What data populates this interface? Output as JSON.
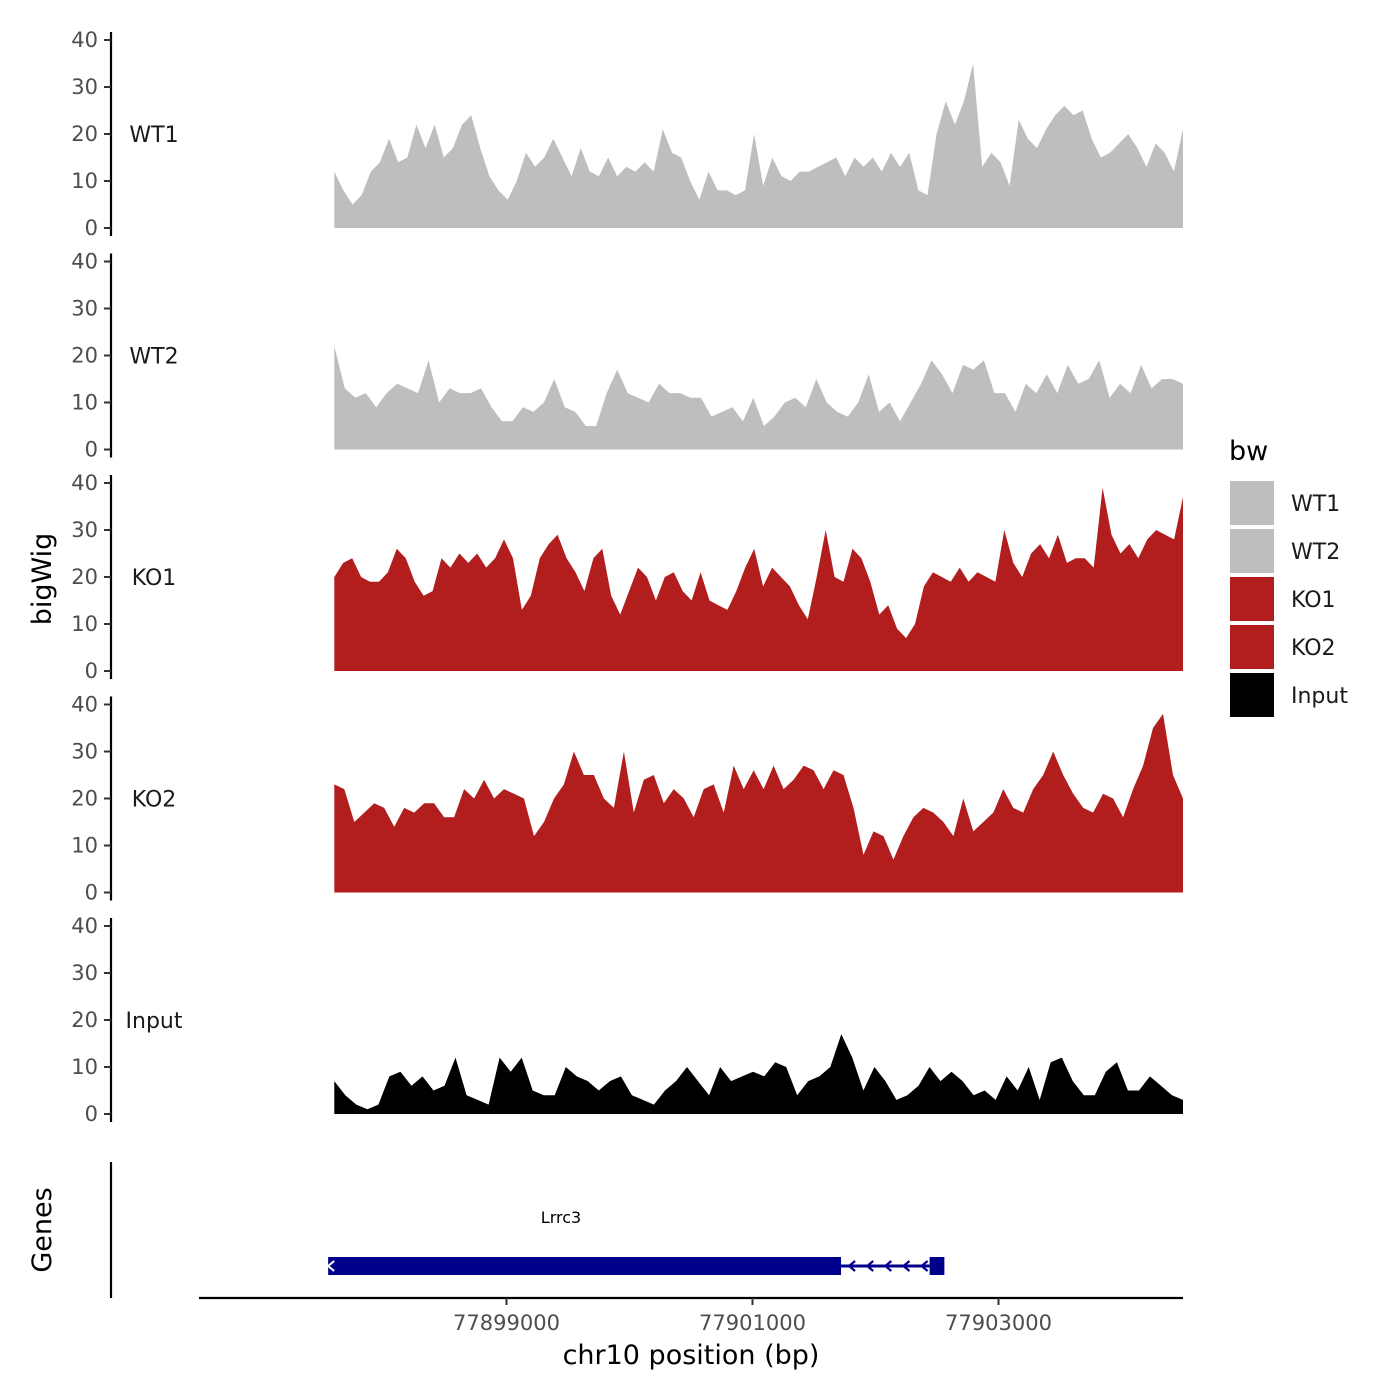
{
  "chart_data": {
    "type": "area",
    "ylabel": "bigWig",
    "xlabel": "chr10 position (bp)",
    "ylim": [
      0,
      40
    ],
    "yticks": [
      0,
      10,
      20,
      30,
      40
    ],
    "xlim": [
      77896500,
      77904500
    ],
    "xticks": [
      77899000,
      77901000,
      77903000
    ],
    "xtick_labels": [
      "77899000",
      "77901000",
      "77903000"
    ],
    "grid": false,
    "legend": {
      "title": "bw",
      "position": "right",
      "entries": [
        {
          "name": "WT1",
          "color": "#BEBEBE"
        },
        {
          "name": "WT2",
          "color": "#BEBEBE"
        },
        {
          "name": "KO1",
          "color": "#B21E1E"
        },
        {
          "name": "KO2",
          "color": "#B21E1E"
        },
        {
          "name": "Input",
          "color": "#000000"
        }
      ]
    },
    "x_start": 77897600,
    "x_end": 77904500,
    "series": [
      {
        "name": "WT1",
        "color": "#BEBEBE",
        "values": [
          12,
          8,
          5,
          7,
          12,
          14,
          19,
          14,
          15,
          22,
          17,
          22,
          15,
          17,
          22,
          24,
          17,
          11,
          8,
          6,
          10,
          16,
          13,
          15,
          19,
          15,
          11,
          17,
          12,
          11,
          15,
          11,
          13,
          12,
          14,
          12,
          21,
          16,
          15,
          10,
          6,
          12,
          8,
          8,
          7,
          8,
          20,
          9,
          15,
          11,
          10,
          12,
          12,
          13,
          14,
          15,
          11,
          15,
          13,
          15,
          12,
          16,
          13,
          16,
          8,
          7,
          20,
          27,
          22,
          27,
          35,
          13,
          16,
          14,
          9,
          23,
          19,
          17,
          21,
          24,
          26,
          24,
          25,
          19,
          15,
          16,
          18,
          20,
          17,
          13,
          18,
          16,
          12,
          21
        ]
      },
      {
        "name": "WT2",
        "color": "#BEBEBE",
        "values": [
          22,
          13,
          11,
          12,
          9,
          12,
          14,
          13,
          12,
          19,
          10,
          13,
          12,
          12,
          13,
          9,
          6,
          6,
          9,
          8,
          10,
          15,
          9,
          8,
          5,
          5,
          12,
          17,
          12,
          11,
          10,
          14,
          12,
          12,
          11,
          11,
          7,
          8,
          9,
          6,
          11,
          5,
          7,
          10,
          11,
          9,
          15,
          10,
          8,
          7,
          10,
          16,
          8,
          10,
          6,
          10,
          14,
          19,
          16,
          12,
          18,
          17,
          19,
          12,
          12,
          8,
          14,
          12,
          16,
          12,
          18,
          14,
          15,
          19,
          11,
          14,
          12,
          18,
          13,
          15,
          15,
          14
        ]
      },
      {
        "name": "KO1",
        "color": "#B21E1E",
        "values": [
          20,
          23,
          24,
          20,
          19,
          19,
          21,
          26,
          24,
          19,
          16,
          17,
          24,
          22,
          25,
          23,
          25,
          22,
          24,
          28,
          24,
          13,
          16,
          24,
          27,
          29,
          24,
          21,
          17,
          24,
          26,
          16,
          12,
          17,
          22,
          20,
          15,
          20,
          21,
          17,
          15,
          21,
          15,
          14,
          13,
          17,
          22,
          26,
          18,
          22,
          20,
          18,
          14,
          11,
          20,
          30,
          20,
          19,
          26,
          24,
          19,
          12,
          14,
          9,
          7,
          10,
          18,
          21,
          20,
          19,
          22,
          19,
          21,
          20,
          19,
          30,
          23,
          20,
          25,
          27,
          24,
          29,
          23,
          24,
          24,
          22,
          39,
          29,
          25,
          27,
          24,
          28,
          30,
          29,
          28,
          37
        ]
      },
      {
        "name": "KO2",
        "color": "#B21E1E",
        "values": [
          23,
          22,
          15,
          17,
          19,
          18,
          14,
          18,
          17,
          19,
          19,
          16,
          16,
          22,
          20,
          24,
          20,
          22,
          21,
          20,
          12,
          15,
          20,
          23,
          30,
          25,
          25,
          20,
          18,
          30,
          17,
          24,
          25,
          19,
          22,
          20,
          16,
          22,
          23,
          17,
          27,
          22,
          26,
          22,
          27,
          22,
          24,
          27,
          26,
          22,
          26,
          25,
          18,
          8,
          13,
          12,
          7,
          12,
          16,
          18,
          17,
          15,
          12,
          20,
          13,
          15,
          17,
          22,
          18,
          17,
          22,
          25,
          30,
          25,
          21,
          18,
          17,
          21,
          20,
          16,
          22,
          27,
          35,
          38,
          25,
          20
        ]
      },
      {
        "name": "Input",
        "color": "#000000",
        "values": [
          7,
          4,
          2,
          1,
          2,
          8,
          9,
          6,
          8,
          5,
          6,
          12,
          4,
          3,
          2,
          12,
          9,
          12,
          5,
          4,
          4,
          10,
          8,
          7,
          5,
          7,
          8,
          4,
          3,
          2,
          5,
          7,
          10,
          7,
          4,
          10,
          7,
          8,
          9,
          8,
          11,
          10,
          4,
          7,
          8,
          10,
          17,
          12,
          5,
          10,
          7,
          3,
          4,
          6,
          10,
          7,
          9,
          7,
          4,
          5,
          3,
          8,
          5,
          10,
          3,
          11,
          12,
          7,
          4,
          4,
          9,
          11,
          5,
          5,
          8,
          6,
          4,
          3
        ]
      }
    ],
    "gene_track": {
      "ylabel": "Genes",
      "gene": "Lrrc3",
      "color": "#00008B",
      "exons": [
        [
          77897550,
          77901720
        ],
        [
          77902440,
          77902560
        ]
      ],
      "intron": [
        77901720,
        77902440
      ],
      "strand": "-"
    }
  }
}
